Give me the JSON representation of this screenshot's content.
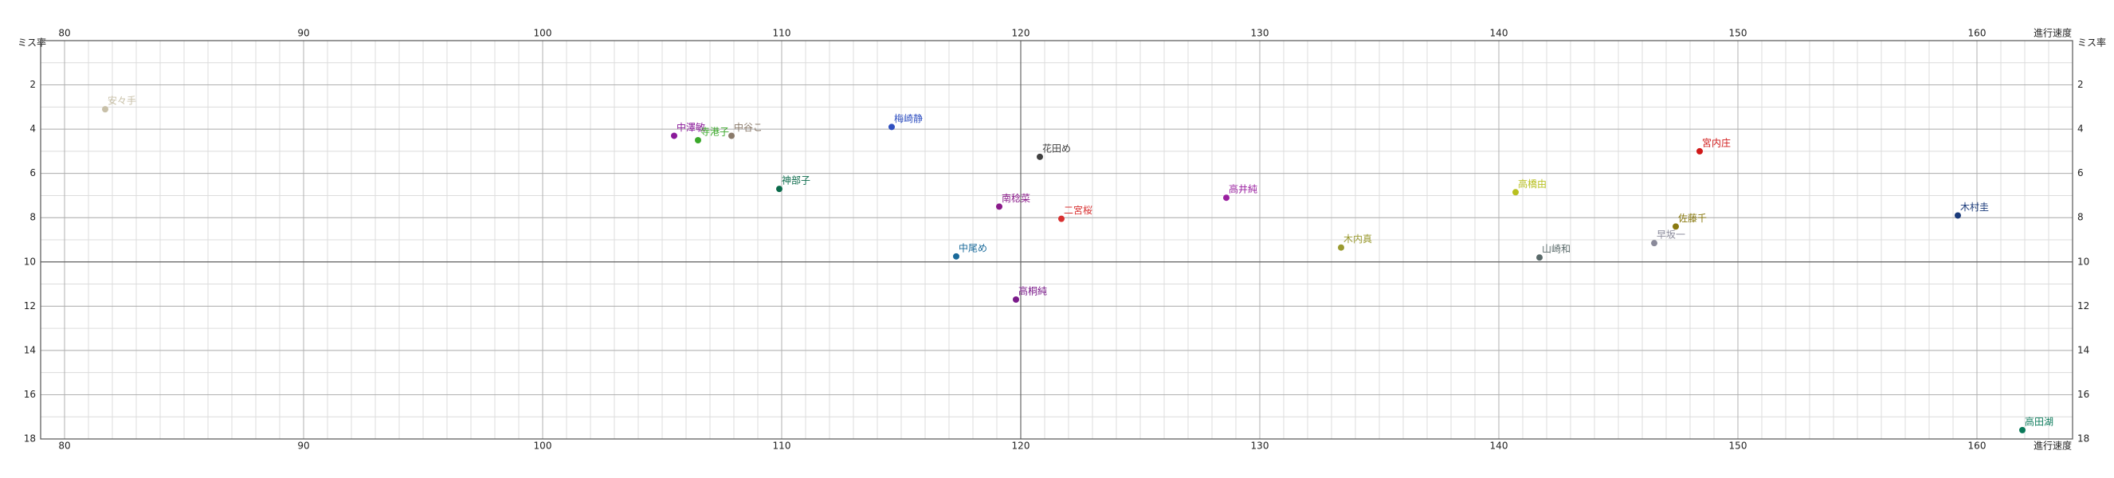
{
  "chart_data": {
    "type": "scatter",
    "x_label": "進行速度",
    "y_label": "ミス率",
    "xlim": [
      79,
      164
    ],
    "ylim": [
      0,
      18
    ],
    "y_inverted": true,
    "xticks": [
      80,
      90,
      100,
      110,
      120,
      130,
      140,
      150,
      160
    ],
    "yticks": [
      2,
      4,
      6,
      8,
      10,
      12,
      14,
      16,
      18
    ],
    "grid": true,
    "minor_grid_step": 1,
    "reference": {
      "x": 120,
      "y": 10
    },
    "series": [
      {
        "name": "安々手",
        "color": "#c8c0a8",
        "x": [
          81.7
        ],
        "values": [
          3.1
        ]
      },
      {
        "name": "中澤敏",
        "color": "#8a1a9a",
        "x": [
          105.5
        ],
        "values": [
          4.3
        ]
      },
      {
        "name": "寺港子",
        "color": "#3aa82a",
        "x": [
          106.5
        ],
        "values": [
          4.5
        ]
      },
      {
        "name": "中谷こ",
        "color": "#8a7a6a",
        "x": [
          107.9
        ],
        "values": [
          4.3
        ]
      },
      {
        "name": "梅崎静",
        "color": "#3050c0",
        "x": [
          114.6
        ],
        "values": [
          3.9
        ]
      },
      {
        "name": "花田め",
        "color": "#404040",
        "x": [
          120.8
        ],
        "values": [
          5.25
        ]
      },
      {
        "name": "宮内庄",
        "color": "#d01818",
        "x": [
          148.4
        ],
        "values": [
          5.0
        ]
      },
      {
        "name": "神部子",
        "color": "#0a6a4a",
        "x": [
          109.9
        ],
        "values": [
          6.7
        ]
      },
      {
        "name": "高井純",
        "color": "#9a20a0",
        "x": [
          128.6
        ],
        "values": [
          7.1
        ]
      },
      {
        "name": "高橋由",
        "color": "#b8c020",
        "x": [
          140.7
        ],
        "values": [
          6.85
        ]
      },
      {
        "name": "南稔菜",
        "color": "#8a1a8a",
        "x": [
          119.1
        ],
        "values": [
          7.5
        ]
      },
      {
        "name": "二宮桜",
        "color": "#d83030",
        "x": [
          121.7
        ],
        "values": [
          8.05
        ]
      },
      {
        "name": "木村圭",
        "color": "#1a3a7a",
        "x": [
          159.2
        ],
        "values": [
          7.9
        ]
      },
      {
        "name": "佐藤千",
        "color": "#8a7a10",
        "x": [
          147.4
        ],
        "values": [
          8.4
        ]
      },
      {
        "name": "早坂一",
        "color": "#8a8a9a",
        "x": [
          146.5
        ],
        "values": [
          9.15
        ]
      },
      {
        "name": "木内真",
        "color": "#9a9a30",
        "x": [
          133.4
        ],
        "values": [
          9.35
        ]
      },
      {
        "name": "山崎和",
        "color": "#5a6a6a",
        "x": [
          141.7
        ],
        "values": [
          9.8
        ]
      },
      {
        "name": "中尾め",
        "color": "#1a6a9a",
        "x": [
          117.3
        ],
        "values": [
          9.75
        ]
      },
      {
        "name": "高桐純",
        "color": "#7a1a8a",
        "x": [
          119.8
        ],
        "values": [
          11.7
        ]
      },
      {
        "name": "高田湖",
        "color": "#0a7a5a",
        "x": [
          161.9
        ],
        "values": [
          17.6
        ]
      }
    ]
  }
}
